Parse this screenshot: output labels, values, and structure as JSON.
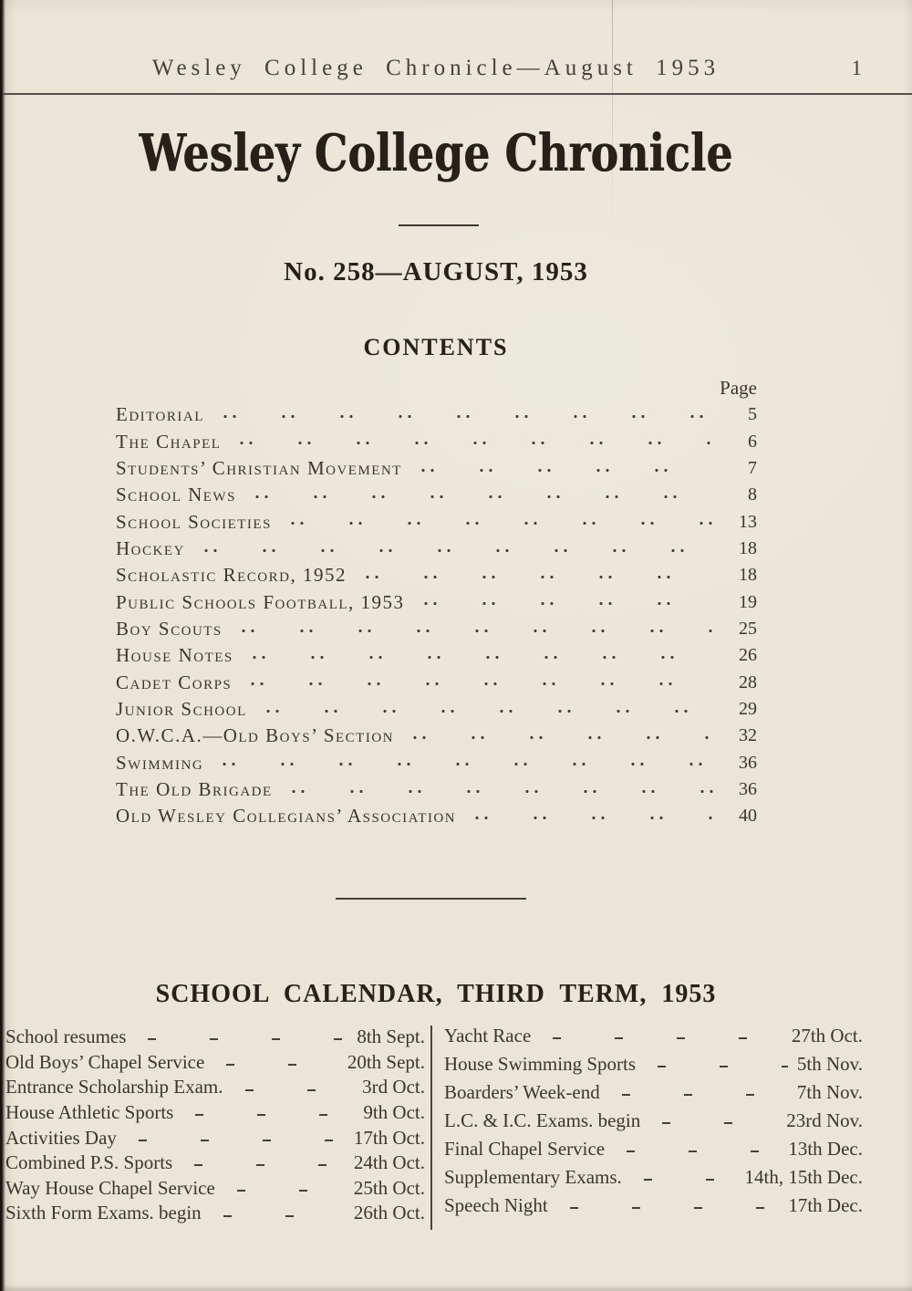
{
  "colors": {
    "page_bg": "#e9e5d7",
    "ink": "#3a362d",
    "heading_ink": "#26221a",
    "light_ink": "#45413a",
    "rule": "#55514a",
    "leader": "#454137",
    "edge": "#161410"
  },
  "running_header": {
    "title": "Wesley College Chronicle—August 1953",
    "folio": "1"
  },
  "masthead": {
    "title": "Wesley College Chronicle"
  },
  "issue_line": "No. 258—AUGUST, 1953",
  "contents": {
    "heading": "CONTENTS",
    "page_label": "Page",
    "rows": [
      {
        "title": "Editorial",
        "page": "5"
      },
      {
        "title": "The Chapel",
        "page": "6"
      },
      {
        "title": "Students’ Christian Movement",
        "page": "7"
      },
      {
        "title": "School News",
        "page": "8"
      },
      {
        "title": "School Societies",
        "page": "13"
      },
      {
        "title": "Hockey",
        "page": "18"
      },
      {
        "title": "Scholastic Record, 1952",
        "page": "18"
      },
      {
        "title": "Public Schools Football, 1953",
        "page": "19"
      },
      {
        "title": "Boy Scouts",
        "page": "25"
      },
      {
        "title": "House Notes",
        "page": "26"
      },
      {
        "title": "Cadet Corps",
        "page": "28"
      },
      {
        "title": "Junior School",
        "page": "29"
      },
      {
        "title": "O.W.C.A.—Old Boys’ Section",
        "page": "32"
      },
      {
        "title": "Swimming",
        "page": "36"
      },
      {
        "title": "The Old Brigade",
        "page": "36"
      },
      {
        "title": "Old Wesley Collegians’ Association",
        "page": "40"
      }
    ]
  },
  "calendar": {
    "heading": "SCHOOL CALENDAR, THIRD TERM, 1953",
    "left": [
      {
        "event": "School resumes",
        "date": "8th Sept."
      },
      {
        "event": "Old Boys’ Chapel Service",
        "date": "20th Sept."
      },
      {
        "event": "Entrance Scholarship Exam.",
        "date": "3rd Oct."
      },
      {
        "event": "House Athletic Sports",
        "date": "9th Oct."
      },
      {
        "event": "Activities Day",
        "date": "17th Oct."
      },
      {
        "event": "Combined P.S. Sports",
        "date": "24th Oct."
      },
      {
        "event": "Way House Chapel Service",
        "date": "25th Oct."
      },
      {
        "event": "Sixth Form Exams. begin",
        "date": "26th Oct."
      }
    ],
    "right": [
      {
        "event": "Yacht Race",
        "date": "27th Oct."
      },
      {
        "event": "House Swimming Sports",
        "date": "5th Nov."
      },
      {
        "event": "Boarders’ Week-end",
        "date": "7th Nov."
      },
      {
        "event": "L.C. & I.C. Exams. begin",
        "date": "23rd Nov."
      },
      {
        "event": "Final Chapel Service",
        "date": "13th Dec."
      },
      {
        "event": "Supplementary Exams.",
        "date": "14th, 15th Dec."
      },
      {
        "event": "Speech Night",
        "date": "17th Dec."
      }
    ]
  }
}
